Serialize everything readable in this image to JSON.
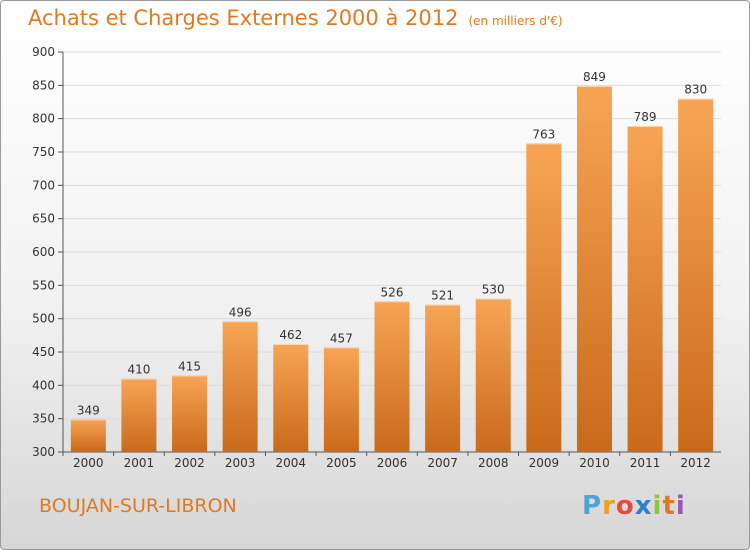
{
  "header": {
    "title": "Achats et Charges Externes 2000 à 2012",
    "unit": "(en milliers d'€)"
  },
  "footer": {
    "place": "BOUJAN-SUR-LIBRON",
    "logo": [
      "P",
      "r",
      "o",
      "x",
      "i",
      "t",
      "i"
    ]
  },
  "colors": {
    "bar_top": "#f7a555",
    "bar_bottom": "#c96a1a",
    "title": "#e07a22"
  },
  "chart_data": {
    "type": "bar",
    "title": "Achats et Charges Externes 2000 à 2012",
    "subtitle": "(en milliers d'€)",
    "categories": [
      "2000",
      "2001",
      "2002",
      "2003",
      "2004",
      "2005",
      "2006",
      "2007",
      "2008",
      "2009",
      "2010",
      "2011",
      "2012"
    ],
    "values": [
      349,
      410,
      415,
      496,
      462,
      457,
      526,
      521,
      530,
      763,
      849,
      789,
      830
    ],
    "ylim": [
      300,
      900
    ],
    "yticks": [
      300,
      350,
      400,
      450,
      500,
      550,
      600,
      650,
      700,
      750,
      800,
      850,
      900
    ],
    "grid": true,
    "xlabel": "",
    "ylabel": ""
  }
}
